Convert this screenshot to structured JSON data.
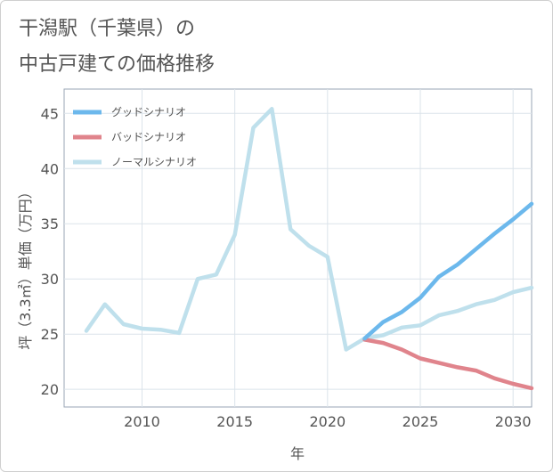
{
  "page": {
    "title_line1": "干潟駅（千葉県）の",
    "title_line2": "中古戸建ての価格推移"
  },
  "chart_data": {
    "type": "line",
    "xlabel": "年",
    "ylabel": "坪（3.3㎡）単価（万円）",
    "xlim": [
      2005.8,
      2031
    ],
    "ylim": [
      18.4,
      47.2
    ],
    "x_ticks": [
      2010,
      2015,
      2020,
      2025,
      2030
    ],
    "y_ticks": [
      20,
      25,
      30,
      35,
      40,
      45
    ],
    "grid": true,
    "legend_position": "top-left",
    "series": [
      {
        "name": "グッドシナリオ",
        "color": "#6cb8ec",
        "x": [
          2022,
          2023,
          2024,
          2025,
          2026,
          2027,
          2028,
          2029,
          2030,
          2031
        ],
        "y": [
          24.6,
          26.1,
          27.0,
          28.3,
          30.2,
          31.3,
          32.7,
          34.1,
          35.4,
          36.8
        ]
      },
      {
        "name": "バッドシナリオ",
        "color": "#e0848c",
        "x": [
          2022,
          2023,
          2024,
          2025,
          2026,
          2027,
          2028,
          2029,
          2030,
          2031
        ],
        "y": [
          24.5,
          24.2,
          23.6,
          22.8,
          22.4,
          22.0,
          21.7,
          21.0,
          20.5,
          20.1
        ]
      },
      {
        "name": "ノーマルシナリオ",
        "color": "#bfe0ec",
        "x": [
          2007,
          2008,
          2009,
          2010,
          2011,
          2012,
          2013,
          2014,
          2015,
          2016,
          2017,
          2018,
          2019,
          2020,
          2021,
          2022,
          2023,
          2024,
          2025,
          2026,
          2027,
          2028,
          2029,
          2030,
          2031
        ],
        "y": [
          25.3,
          27.7,
          25.9,
          25.5,
          25.4,
          25.1,
          30.0,
          30.4,
          34.0,
          43.7,
          45.4,
          34.5,
          33.0,
          32.0,
          23.6,
          24.6,
          24.9,
          25.6,
          25.8,
          26.7,
          27.1,
          27.7,
          28.1,
          28.8,
          29.2
        ]
      }
    ]
  }
}
